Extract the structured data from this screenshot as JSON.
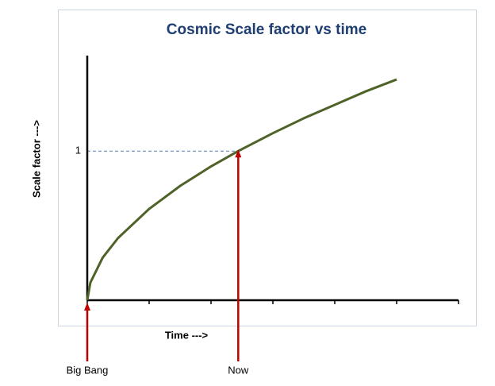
{
  "chart_data": {
    "type": "line",
    "title": "Cosmic Scale factor vs time",
    "x_label": "Time --->",
    "y_label": "Scale factor  --->",
    "series": [
      {
        "name": "Scale factor",
        "color": "#4f6228",
        "x": [
          0,
          0.05,
          0.25,
          0.5,
          1,
          1.5,
          2,
          2.44,
          3,
          3.5,
          4,
          4.5,
          5
        ],
        "values": [
          0,
          0.118,
          0.286,
          0.418,
          0.612,
          0.766,
          0.897,
          1,
          1.12,
          1.22,
          1.31,
          1.4,
          1.48
        ]
      }
    ],
    "xlim": [
      0,
      6
    ],
    "xticks": [
      0,
      1,
      2,
      3,
      4,
      5,
      6
    ],
    "ylim": [
      0,
      1.64
    ],
    "yticks": [
      1
    ],
    "reference_line": {
      "y": 1,
      "x": 2.44
    },
    "annotations": [
      {
        "text": "Big Bang",
        "x": 0,
        "color": "#c00000"
      },
      {
        "text": "Now",
        "x": 2.44,
        "color": "#c00000"
      }
    ]
  }
}
